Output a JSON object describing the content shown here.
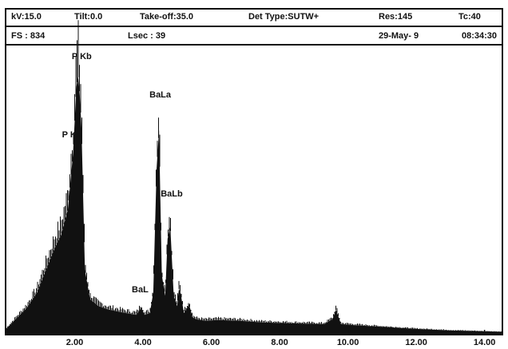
{
  "header": {
    "kv": "kV:15.0",
    "tilt": "Tilt:0.0",
    "takeoff": "Take-off:35.0",
    "det": "Det Type:SUTW+",
    "res": "Res:145",
    "tc": "Tc:40",
    "fs": "FS : 834",
    "lsec": "Lsec : 39",
    "date": "29-May- 9",
    "time": "08:34:30"
  },
  "chart_data": {
    "type": "area",
    "xlabel": "",
    "ylabel": "",
    "xlim": [
      0.0,
      14.5
    ],
    "ylim": [
      0,
      834
    ],
    "grid": false,
    "x_ticks": [
      "2.00",
      "4.00",
      "6.00",
      "8.00",
      "10.00",
      "12.00",
      "14.00"
    ],
    "x_tick_values": [
      2.0,
      4.0,
      6.0,
      8.0,
      10.0,
      12.0,
      14.0
    ],
    "series": [
      {
        "x": [
          0.0,
          0.3,
          0.6,
          0.9,
          1.2,
          1.4,
          1.6,
          1.8,
          1.95,
          2.05,
          2.1,
          2.15,
          2.2,
          2.3,
          2.45,
          2.7,
          3.0,
          3.4,
          3.8,
          3.95,
          4.05,
          4.2,
          4.3,
          4.4,
          4.47,
          4.55,
          4.65,
          4.72,
          4.8,
          4.9,
          5.0,
          5.05,
          5.1,
          5.2,
          5.35,
          5.45,
          5.55,
          5.8,
          6.2,
          6.8,
          7.5,
          8.5,
          9.3,
          9.55,
          9.65,
          9.8,
          10.2,
          11.0,
          12.0,
          13.0,
          14.5
        ],
        "y": [
          15,
          45,
          75,
          120,
          195,
          245,
          285,
          360,
          520,
          715,
          748,
          690,
          590,
          185,
          100,
          80,
          70,
          62,
          55,
          75,
          55,
          60,
          120,
          480,
          590,
          170,
          110,
          275,
          310,
          110,
          80,
          130,
          118,
          60,
          85,
          48,
          42,
          38,
          40,
          38,
          33,
          30,
          28,
          42,
          70,
          28,
          25,
          20,
          14,
          10,
          6
        ]
      }
    ],
    "annotations": [
      {
        "label": "P Kb",
        "x": 2.15
      },
      {
        "label": "P Ka",
        "x": 2.05
      },
      {
        "label": "BaLa",
        "x": 4.47
      },
      {
        "label": "BaLb",
        "x": 4.8
      },
      {
        "label": "BaL",
        "x": 4.0
      }
    ]
  },
  "colors": {
    "fill": "#111111",
    "frame": "#111111",
    "background": "#ffffff"
  }
}
